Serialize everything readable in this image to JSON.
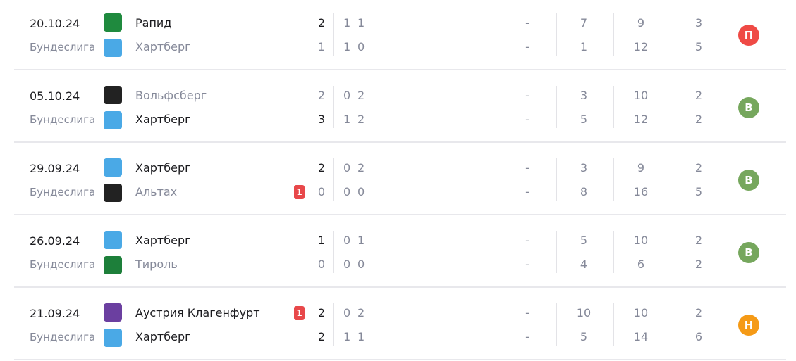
{
  "colors": {
    "loss": "#ef4a45",
    "win": "#76a75d",
    "draw": "#f59a16"
  },
  "matches": [
    {
      "date": "20.10.24",
      "league": "Бундеслига",
      "home": {
        "name": "Рапид",
        "score": "2",
        "h1": "1",
        "h2": "1",
        "c1": "-",
        "c2": "7",
        "c3": "9",
        "c4": "3",
        "win": true,
        "red": "",
        "logo": "#1f8a3e"
      },
      "away": {
        "name": "Хартберг",
        "score": "1",
        "h1": "1",
        "h2": "0",
        "c1": "-",
        "c2": "1",
        "c3": "12",
        "c4": "5",
        "win": false,
        "red": "",
        "logo": "#4aa9e6"
      },
      "result": "П",
      "result_type": "loss"
    },
    {
      "date": "05.10.24",
      "league": "Бундеслига",
      "home": {
        "name": "Вольфсберг",
        "score": "2",
        "h1": "0",
        "h2": "2",
        "c1": "-",
        "c2": "3",
        "c3": "10",
        "c4": "2",
        "win": false,
        "red": "",
        "logo": "#222"
      },
      "away": {
        "name": "Хартберг",
        "score": "3",
        "h1": "1",
        "h2": "2",
        "c1": "-",
        "c2": "5",
        "c3": "12",
        "c4": "2",
        "win": true,
        "red": "",
        "logo": "#4aa9e6"
      },
      "result": "В",
      "result_type": "win"
    },
    {
      "date": "29.09.24",
      "league": "Бундеслига",
      "home": {
        "name": "Хартберг",
        "score": "2",
        "h1": "0",
        "h2": "2",
        "c1": "-",
        "c2": "3",
        "c3": "9",
        "c4": "2",
        "win": true,
        "red": "",
        "logo": "#4aa9e6"
      },
      "away": {
        "name": "Альтах",
        "score": "0",
        "h1": "0",
        "h2": "0",
        "c1": "-",
        "c2": "8",
        "c3": "16",
        "c4": "5",
        "win": false,
        "red": "1",
        "logo": "#222"
      },
      "result": "В",
      "result_type": "win"
    },
    {
      "date": "26.09.24",
      "league": "Бундеслига",
      "home": {
        "name": "Хартберг",
        "score": "1",
        "h1": "0",
        "h2": "1",
        "c1": "-",
        "c2": "5",
        "c3": "10",
        "c4": "2",
        "win": true,
        "red": "",
        "logo": "#4aa9e6"
      },
      "away": {
        "name": "Тироль",
        "score": "0",
        "h1": "0",
        "h2": "0",
        "c1": "-",
        "c2": "4",
        "c3": "6",
        "c4": "2",
        "win": false,
        "red": "",
        "logo": "#1d7f3a"
      },
      "result": "В",
      "result_type": "win"
    },
    {
      "date": "21.09.24",
      "league": "Бундеслига",
      "home": {
        "name": "Аустрия Клагенфурт",
        "score": "2",
        "h1": "0",
        "h2": "2",
        "c1": "-",
        "c2": "10",
        "c3": "10",
        "c4": "2",
        "win": true,
        "red": "1",
        "logo": "#6b3fa0"
      },
      "away": {
        "name": "Хартберг",
        "score": "2",
        "h1": "1",
        "h2": "1",
        "c1": "-",
        "c2": "5",
        "c3": "14",
        "c4": "6",
        "win": true,
        "red": "",
        "logo": "#4aa9e6"
      },
      "result": "Н",
      "result_type": "draw"
    }
  ]
}
